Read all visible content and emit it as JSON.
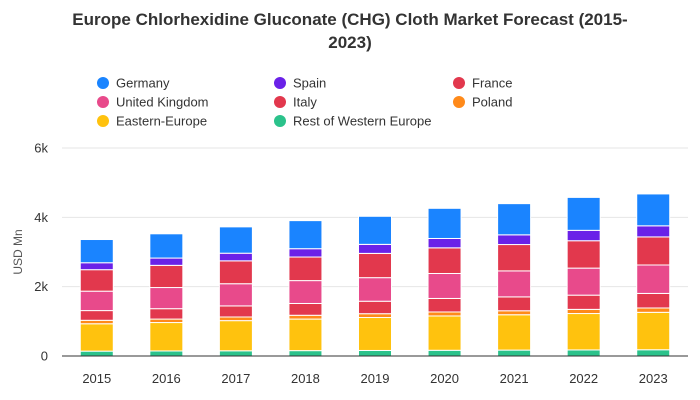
{
  "chart_data": {
    "type": "bar",
    "stacked": true,
    "title_lines": [
      "Europe Chlorhexidine Gluconate (CHG) Cloth Market Forecast (2015-",
      "2023)"
    ],
    "title": "Europe Chlorhexidine Gluconate (CHG) Cloth Market Forecast (2015-2023)",
    "xlabel": "",
    "ylabel": "USD Mn",
    "ylim": [
      0,
      6000
    ],
    "yticks": [
      0,
      2000,
      4000,
      6000
    ],
    "ytick_labels": [
      "0",
      "2k",
      "4k",
      "6k"
    ],
    "grid": true,
    "legend_position": "top",
    "categories": [
      "2015",
      "2016",
      "2017",
      "2018",
      "2019",
      "2020",
      "2021",
      "2022",
      "2023"
    ],
    "series": [
      {
        "name": "Rest of Western Europe",
        "color": "#2bc28b",
        "values": [
          140,
          145,
          150,
          155,
          160,
          165,
          170,
          175,
          180
        ]
      },
      {
        "name": "Eastern-Europe",
        "color": "#ffc20e",
        "values": [
          790,
          820,
          870,
          910,
          950,
          990,
          1020,
          1050,
          1080
        ]
      },
      {
        "name": "Poland",
        "color": "#ff8a1a",
        "values": [
          100,
          100,
          105,
          110,
          110,
          115,
          115,
          120,
          125
        ]
      },
      {
        "name": "Italy",
        "color": "#e2384d",
        "values": [
          280,
          300,
          320,
          340,
          360,
          390,
          400,
          410,
          420
        ]
      },
      {
        "name": "United Kingdom",
        "color": "#e84a8b",
        "values": [
          560,
          610,
          640,
          660,
          680,
          720,
          750,
          780,
          820
        ]
      },
      {
        "name": "France",
        "color": "#e2384d",
        "values": [
          620,
          640,
          660,
          680,
          700,
          740,
          760,
          790,
          810
        ]
      },
      {
        "name": "Spain",
        "color": "#6a21e8",
        "values": [
          200,
          210,
          220,
          240,
          260,
          270,
          280,
          300,
          320
        ]
      },
      {
        "name": "Germany",
        "color": "#1a84ff",
        "values": [
          670,
          700,
          760,
          810,
          810,
          870,
          900,
          950,
          920
        ]
      }
    ]
  },
  "legend": [
    {
      "name": "Germany",
      "color": "#1a84ff"
    },
    {
      "name": "Spain",
      "color": "#6a21e8"
    },
    {
      "name": "France",
      "color": "#e2384d"
    },
    {
      "name": "United Kingdom",
      "color": "#e84a8b"
    },
    {
      "name": "Italy",
      "color": "#e2384d"
    },
    {
      "name": "Poland",
      "color": "#ff8a1a"
    },
    {
      "name": "Eastern-Europe",
      "color": "#ffc20e"
    },
    {
      "name": "Rest of Western Europe",
      "color": "#2bc28b"
    }
  ]
}
